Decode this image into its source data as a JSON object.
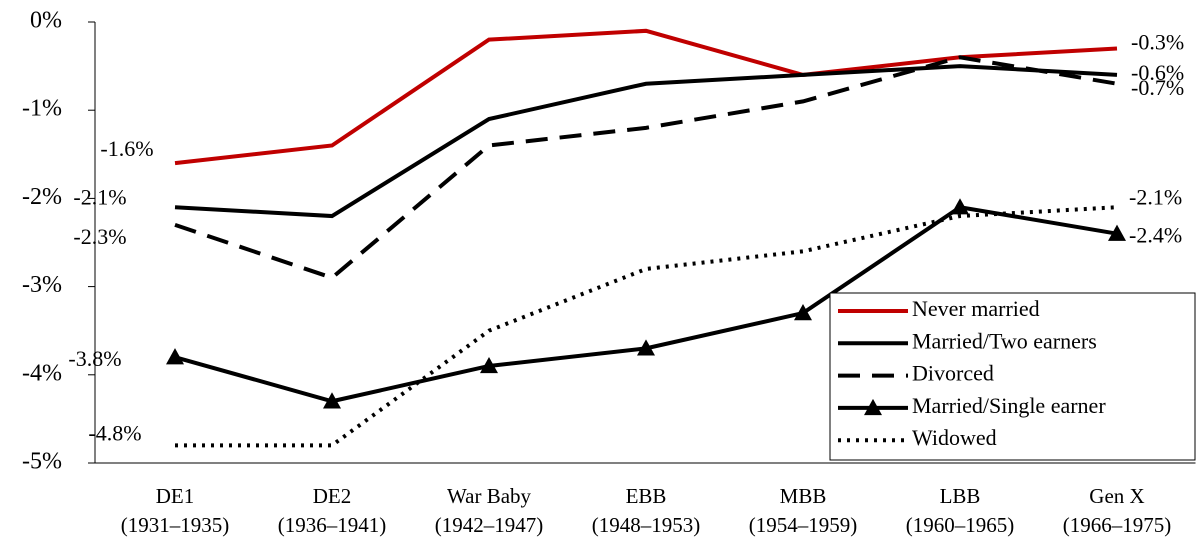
{
  "chart_data": {
    "type": "line",
    "categories": [
      [
        "DE1",
        "(1931–1935)"
      ],
      [
        "DE2",
        "(1936–1941)"
      ],
      [
        "War Baby",
        "(1942–1947)"
      ],
      [
        "EBB",
        "(1948–1953)"
      ],
      [
        "MBB",
        "(1954–1959)"
      ],
      [
        "LBB",
        "(1960–1965)"
      ],
      [
        "Gen X",
        "(1966–1975)"
      ]
    ],
    "ylim": [
      -5,
      0
    ],
    "yticks": [
      {
        "value": -5,
        "label": "-5%"
      },
      {
        "value": -4,
        "label": "-4%"
      },
      {
        "value": -3,
        "label": "-3%"
      },
      {
        "value": -2,
        "label": "-2%"
      },
      {
        "value": -1,
        "label": "-1%"
      },
      {
        "value": 0,
        "label": "0%"
      }
    ],
    "legend": "lower right",
    "series": [
      {
        "name": "Never married",
        "color": "#c00000",
        "dash": "solid",
        "marker": "none",
        "values": [
          -1.6,
          -1.4,
          -0.2,
          -0.1,
          -0.6,
          -0.4,
          -0.3
        ],
        "value_labels": [
          "-1.6%",
          null,
          null,
          null,
          null,
          null,
          "-0.3%"
        ]
      },
      {
        "name": "Married/Two earners",
        "color": "#000000",
        "dash": "solid",
        "marker": "none",
        "values": [
          -2.1,
          -2.2,
          -1.1,
          -0.7,
          -0.6,
          -0.5,
          -0.6
        ],
        "value_labels": [
          "-2.1%",
          null,
          null,
          null,
          null,
          null,
          "-0.6%"
        ]
      },
      {
        "name": "Divorced",
        "color": "#000000",
        "dash": "dashed",
        "marker": "none",
        "values": [
          -2.3,
          -2.9,
          -1.4,
          -1.2,
          -0.9,
          -0.4,
          -0.7
        ],
        "value_labels": [
          "-2.3%",
          null,
          null,
          null,
          null,
          null,
          "-0.7%"
        ]
      },
      {
        "name": "Married/Single earner",
        "color": "#000000",
        "dash": "solid",
        "marker": "triangle",
        "values": [
          -3.8,
          -4.3,
          -3.9,
          -3.7,
          -3.3,
          -2.1,
          -2.4
        ],
        "value_labels": [
          "-3.8%",
          null,
          null,
          null,
          null,
          null,
          "-2.4%"
        ]
      },
      {
        "name": "Widowed",
        "color": "#000000",
        "dash": "dotted",
        "marker": "none",
        "values": [
          -4.8,
          -4.8,
          -3.5,
          -2.8,
          -2.6,
          -2.2,
          -2.1
        ],
        "value_labels": [
          "-4.8%",
          null,
          null,
          null,
          null,
          null,
          "-2.1%"
        ]
      }
    ]
  }
}
